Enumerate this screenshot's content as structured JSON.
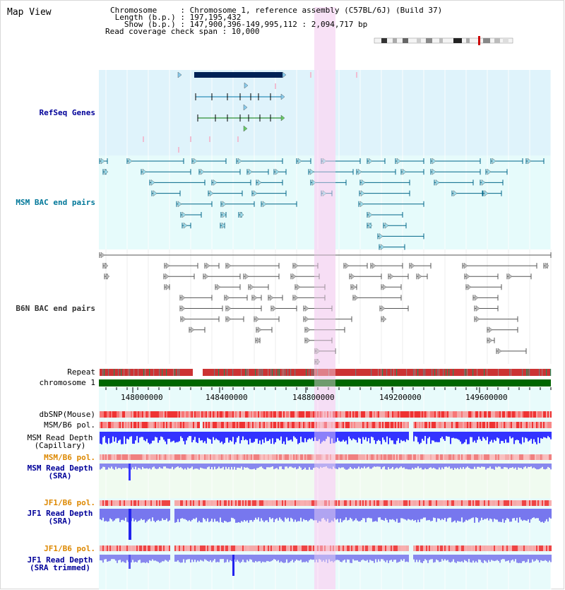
{
  "header": {
    "map_title": "Map View",
    "chromosome_line": "Chromosome     : Chromosome 1, reference assembly (C57BL/6J) (Build 37)",
    "length_line": " Length (b.p.) : 197,195,432",
    "show_line": "   Show (b.p.) : 147,900,396-149,995,112 : 2,094,717 bp",
    "coverage_line": "Read coverage check span : 10,000"
  },
  "tracks": {
    "refseq": "RefSeq Genes",
    "msm_bac": "MSM BAC end pairs",
    "b6n_bac": "B6N BAC end pairs",
    "repeat": "Repeat",
    "chromosome": "chromosome 1",
    "dbsnp": "dbSNP(Mouse)",
    "msm_b6_pol_1": "MSM/B6 pol.",
    "msm_depth_cap": "MSM Read Depth\n(Capillary)",
    "msm_b6_pol_2": "MSM/B6 pol.",
    "msm_depth_sra": "MSM Read Depth\n(SRA)",
    "jf1_b6_pol_1": "JF1/B6 pol.",
    "jf1_depth_sra": "JF1 Read Depth\n(SRA)",
    "jf1_b6_pol_2": "JF1/B6 pol.",
    "jf1_depth_trim": "JF1 Read Depth\n(SRA trimmed)"
  },
  "axis": {
    "ticks": [
      "148000000",
      "148400000",
      "148800000",
      "149200000",
      "149600000"
    ]
  },
  "colors": {
    "refseq_bg": "#dff3fb",
    "msm_bg": "#e6fbfb",
    "highlight": "#f7dcf5",
    "chromosome": "#006600",
    "repeat": "#cc2222",
    "refseq_label": "#000099",
    "msm_label": "#007799",
    "b6n_label": "#333333",
    "orange_label": "#dd8800",
    "blue_label": "#000099",
    "pol_red": "#ee3333",
    "depth_blue": "#3333ff",
    "depth_light": "#8888ff",
    "gene_dark": "#002255",
    "bac_teal": "#006688",
    "bac_gray": "#555555"
  }
}
